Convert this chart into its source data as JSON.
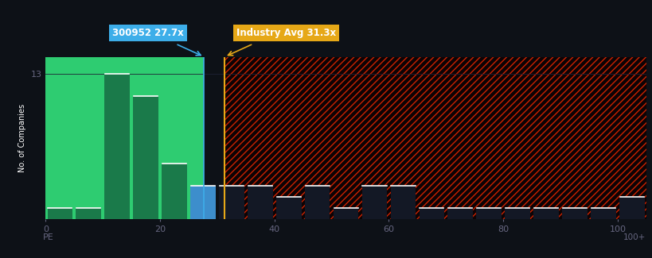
{
  "background_color": "#0d1117",
  "xlabel": "PE",
  "ylabel": "No. of Companies",
  "ytick_value": 13,
  "xlim": [
    0,
    105
  ],
  "ylim": [
    0,
    14.5
  ],
  "bar_edges": [
    0,
    5,
    10,
    15,
    20,
    25,
    30,
    35,
    40,
    45,
    50,
    55,
    60,
    65,
    70,
    75,
    80,
    85,
    90,
    95,
    100
  ],
  "bar_values": [
    1,
    1,
    13,
    11,
    5,
    3,
    3,
    3,
    2,
    3,
    1,
    3,
    3,
    1,
    1,
    1,
    1,
    1,
    1,
    1,
    2
  ],
  "selected_line": 27.7,
  "selected_label": "300952 27.7x",
  "industry_line": 31.3,
  "industry_label": "Industry Avg 31.3x",
  "green_color": "#2ecc71",
  "dark_green_color": "#1a7a4a",
  "blue_color": "#3d8ecc",
  "hatch_fg": "#cc2200",
  "hatch_bg": "#0d0305",
  "text_color": "#ffffff",
  "grid_color": "#1e2235",
  "tick_color": "#666680",
  "selected_box_color": "#3daee9",
  "industry_box_color": "#e6a817",
  "bar_dark_color": "#131825",
  "xticks": [
    0,
    20,
    40,
    60,
    80,
    100
  ],
  "yticks": [
    13
  ]
}
